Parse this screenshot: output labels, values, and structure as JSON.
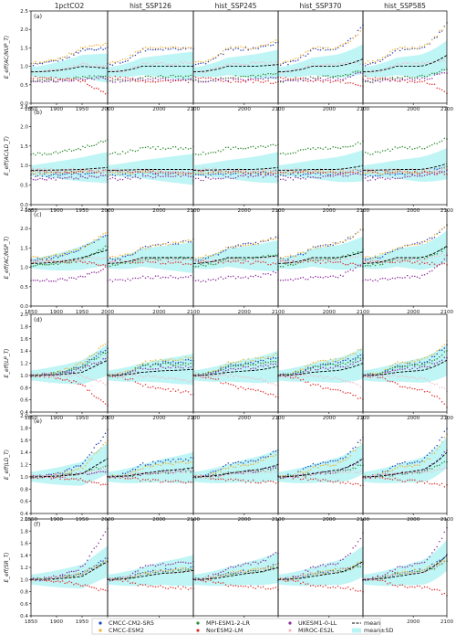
{
  "figure": {
    "columns": [
      "1pctCO2",
      "hist_SSP126",
      "hist_SSP245",
      "hist_SSP370",
      "hist_SSP585"
    ],
    "panel_labels": [
      "(a)",
      "(b)",
      "(c)",
      "(d)",
      "(e)",
      "(f)"
    ],
    "y_labels": [
      "E_eff(AC/NUP_T)",
      "E_eff(AC/LD_T)",
      "E_eff(AC/NSP_T)",
      "E_eff(LP_T)",
      "E_eff(LD_T)",
      "E_eff(SR_T)"
    ],
    "x_ticks_first": [
      "1850",
      "1900",
      "1950",
      "2000"
    ],
    "x_ticks_other": [
      "2000",
      "2100"
    ]
  },
  "legend": {
    "items": [
      {
        "label": "CMCC-CM2-SR5",
        "color": "#1f3fbf",
        "kind": "dot"
      },
      {
        "label": "CMCC-ESM2",
        "color": "#f0b030",
        "kind": "dot"
      },
      {
        "label": "MPI-ESM1-2-LR",
        "color": "#2e8b2e",
        "kind": "dot"
      },
      {
        "label": "NorESM2-LM",
        "color": "#e03030",
        "kind": "dot"
      },
      {
        "label": "UKESM1-0-LL",
        "color": "#8e2c9e",
        "kind": "dot"
      },
      {
        "label": "MIROC-ES2L",
        "color": "#f4b8c8",
        "kind": "dot"
      },
      {
        "label": "mean",
        "color": "#000000",
        "kind": "dash"
      },
      {
        "label": "mean±SD",
        "color": "#b8f4f4",
        "kind": "band"
      }
    ]
  },
  "chart_data": {
    "type": "line",
    "x_ranges": {
      "1pctCO2": [
        1850,
        2000
      ],
      "scenarios": [
        1850,
        2100
      ]
    },
    "rows": [
      {
        "label": "(a)",
        "ylabel": "E_eff(AC/NUP_T)",
        "ylim": [
          0,
          2.5
        ],
        "yticks": [
          0.0,
          0.5,
          1.0,
          1.5,
          2.0,
          2.5
        ],
        "models": {
          "CMCC-CM2-SR5": {
            "start": 1.05,
            "mid": 1.45,
            "end": [
              1.5,
              1.5,
              1.65,
              2.1,
              2.15
            ]
          },
          "CMCC-ESM2": {
            "start": 1.1,
            "mid": 1.5,
            "end": [
              1.6,
              1.5,
              1.7,
              2.0,
              2.2
            ]
          },
          "MPI-ESM1-2-LR": {
            "start": 0.6,
            "mid": 0.7,
            "end": [
              0.75,
              0.75,
              0.8,
              0.9,
              0.95
            ]
          },
          "NorESM2-LM": {
            "start": 0.7,
            "mid": 0.6,
            "end": [
              0.25,
              0.6,
              0.55,
              0.45,
              0.3
            ]
          },
          "UKESM1-0-LL": {
            "start": 0.6,
            "mid": 0.65,
            "end": [
              0.7,
              0.65,
              0.7,
              0.85,
              0.85
            ]
          },
          "MIROC-ES2L": {
            "start": 0.85,
            "mid": 1.05,
            "end": [
              1.0,
              1.1,
              1.1,
              1.1,
              1.2
            ]
          },
          "mean": {
            "start": 0.85,
            "mid": 1.0,
            "end": [
              0.95,
              1.0,
              1.05,
              1.2,
              1.3
            ]
          }
        }
      },
      {
        "label": "(b)",
        "ylabel": "E_eff(AC/LD_T)",
        "ylim": [
          0,
          2.5
        ],
        "yticks": [
          0.0,
          0.5,
          1.0,
          1.5,
          2.0,
          2.5
        ],
        "models": {
          "CMCC-CM2-SR5": {
            "start": 0.75,
            "mid": 0.8,
            "end": [
              0.85,
              0.8,
              0.85,
              0.95,
              1.0
            ]
          },
          "CMCC-ESM2": {
            "start": 0.8,
            "mid": 0.85,
            "end": [
              0.85,
              0.8,
              0.85,
              0.9,
              0.95
            ]
          },
          "MPI-ESM1-2-LR": {
            "start": 1.3,
            "mid": 1.45,
            "end": [
              1.65,
              1.45,
              1.55,
              1.6,
              1.7
            ]
          },
          "NorESM2-LM": {
            "start": 0.85,
            "mid": 0.85,
            "end": [
              0.85,
              0.8,
              0.8,
              0.8,
              0.8
            ]
          },
          "UKESM1-0-LL": {
            "start": 0.65,
            "mid": 0.7,
            "end": [
              0.75,
              0.75,
              0.75,
              0.85,
              0.9
            ]
          },
          "MIROC-ES2L": {
            "start": 0.9,
            "mid": 0.9,
            "end": [
              0.85,
              0.85,
              0.85,
              0.85,
              0.9
            ]
          },
          "mean": {
            "start": 0.88,
            "mid": 0.9,
            "end": [
              0.95,
              0.9,
              0.95,
              1.0,
              1.05
            ]
          }
        }
      },
      {
        "label": "(c)",
        "ylabel": "E_eff(AC/NSP_T)",
        "ylim": [
          0,
          2.5
        ],
        "yticks": [
          0.0,
          0.5,
          1.0,
          1.5,
          2.0,
          2.5
        ],
        "models": {
          "CMCC-CM2-SR5": {
            "start": 1.2,
            "mid": 1.5,
            "end": [
              1.85,
              1.7,
              1.8,
              2.0,
              2.1
            ]
          },
          "CMCC-ESM2": {
            "start": 1.25,
            "mid": 1.5,
            "end": [
              1.9,
              1.7,
              1.8,
              2.0,
              2.1
            ]
          },
          "MPI-ESM1-2-LR": {
            "start": 1.05,
            "mid": 1.2,
            "end": [
              1.55,
              1.25,
              1.35,
              1.45,
              1.5
            ]
          },
          "NorESM2-LM": {
            "start": 1.15,
            "mid": 1.15,
            "end": [
              1.05,
              1.1,
              1.1,
              1.05,
              1.05
            ]
          },
          "UKESM1-0-LL": {
            "start": 0.65,
            "mid": 0.75,
            "end": [
              1.0,
              0.75,
              0.9,
              1.15,
              1.3
            ]
          },
          "MIROC-ES2L": {
            "start": 1.15,
            "mid": 1.2,
            "end": [
              1.25,
              1.2,
              1.25,
              1.3,
              1.35
            ]
          },
          "mean": {
            "start": 1.1,
            "mid": 1.25,
            "end": [
              1.45,
              1.25,
              1.3,
              1.4,
              1.55
            ]
          }
        }
      },
      {
        "label": "(d)",
        "ylabel": "E_eff(LP_T)",
        "ylim": [
          0.4,
          2.0
        ],
        "yticks": [
          0.4,
          0.6,
          0.8,
          1.0,
          1.2,
          1.4,
          1.6,
          1.8,
          2.0
        ],
        "models": {
          "CMCC-CM2-SR5": {
            "start": 1.0,
            "mid": 1.15,
            "end": [
              1.45,
              1.25,
              1.3,
              1.35,
              1.5
            ]
          },
          "CMCC-ESM2": {
            "start": 1.0,
            "mid": 1.2,
            "end": [
              1.55,
              1.3,
              1.35,
              1.45,
              1.55
            ]
          },
          "MPI-ESM1-2-LR": {
            "start": 1.0,
            "mid": 1.15,
            "end": [
              1.4,
              1.2,
              1.25,
              1.3,
              1.4
            ]
          },
          "NorESM2-LM": {
            "start": 1.0,
            "mid": 0.85,
            "end": [
              0.5,
              0.7,
              0.65,
              0.6,
              0.5
            ]
          },
          "UKESM1-0-LL": {
            "start": 1.0,
            "mid": 1.1,
            "end": [
              1.3,
              1.15,
              1.2,
              1.25,
              1.3
            ]
          },
          "MIROC-ES2L": {
            "start": 1.0,
            "mid": 1.0,
            "end": [
              0.85,
              0.9,
              0.85,
              0.8,
              0.75
            ]
          },
          "mean": {
            "start": 1.0,
            "mid": 1.05,
            "end": [
              1.25,
              1.1,
              1.15,
              1.2,
              1.25
            ]
          }
        }
      },
      {
        "label": "(e)",
        "ylabel": "E_eff(LD_T)",
        "ylim": [
          0.4,
          2.0
        ],
        "yticks": [
          0.4,
          0.6,
          0.8,
          1.0,
          1.2,
          1.4,
          1.6,
          1.8,
          2.0
        ],
        "models": {
          "CMCC-CM2-SR5": {
            "start": 1.0,
            "mid": 1.2,
            "end": [
              1.75,
              1.3,
              1.45,
              1.65,
              1.8
            ]
          },
          "CMCC-ESM2": {
            "start": 1.0,
            "mid": 1.15,
            "end": [
              1.6,
              1.25,
              1.4,
              1.6,
              1.7
            ]
          },
          "MPI-ESM1-2-LR": {
            "start": 1.0,
            "mid": 1.05,
            "end": [
              1.2,
              1.1,
              1.15,
              1.2,
              1.25
            ]
          },
          "NorESM2-LM": {
            "start": 1.0,
            "mid": 0.95,
            "end": [
              0.85,
              0.9,
              0.9,
              0.85,
              0.85
            ]
          },
          "UKESM1-0-LL": {
            "start": 1.0,
            "mid": 1.05,
            "end": [
              1.1,
              1.1,
              1.2,
              1.3,
              1.45
            ]
          },
          "MIROC-ES2L": {
            "start": 1.0,
            "mid": 1.05,
            "end": [
              1.15,
              1.1,
              1.1,
              1.1,
              1.15
            ]
          },
          "mean": {
            "start": 1.0,
            "mid": 1.05,
            "end": [
              1.3,
              1.15,
              1.2,
              1.3,
              1.4
            ]
          }
        }
      },
      {
        "label": "(f)",
        "ylabel": "E_eff(SR_T)",
        "ylim": [
          0.4,
          2.0
        ],
        "yticks": [
          0.4,
          0.6,
          0.8,
          1.0,
          1.2,
          1.4,
          1.6,
          1.8,
          2.0
        ],
        "models": {
          "CMCC-CM2-SR5": {
            "start": 1.0,
            "mid": 1.1,
            "end": [
              1.35,
              1.2,
              1.25,
              1.3,
              1.4
            ]
          },
          "CMCC-ESM2": {
            "start": 1.0,
            "mid": 1.1,
            "end": [
              1.3,
              1.2,
              1.25,
              1.3,
              1.35
            ]
          },
          "MPI-ESM1-2-LR": {
            "start": 1.0,
            "mid": 1.1,
            "end": [
              1.3,
              1.15,
              1.2,
              1.25,
              1.3
            ]
          },
          "NorESM2-LM": {
            "start": 1.0,
            "mid": 0.9,
            "end": [
              0.8,
              0.85,
              0.85,
              0.8,
              0.75
            ]
          },
          "UKESM1-0-LL": {
            "start": 1.0,
            "mid": 1.2,
            "end": [
              1.85,
              1.3,
              1.45,
              1.75,
              1.85
            ]
          },
          "MIROC-ES2L": {
            "start": 1.0,
            "mid": 1.1,
            "end": [
              1.3,
              1.15,
              1.2,
              1.25,
              1.3
            ]
          },
          "mean": {
            "start": 1.0,
            "mid": 1.05,
            "end": [
              1.3,
              1.15,
              1.2,
              1.3,
              1.4
            ]
          }
        }
      }
    ]
  }
}
